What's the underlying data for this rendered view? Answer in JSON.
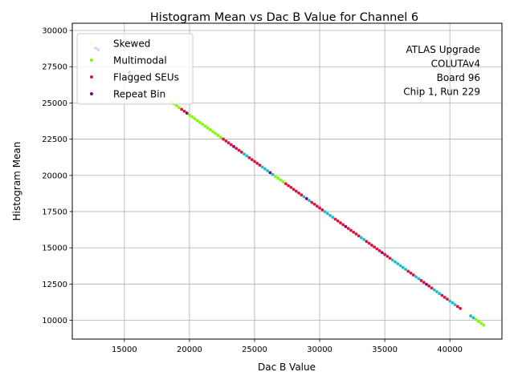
{
  "chart_data": {
    "type": "scatter",
    "title": "Histogram Mean vs Dac B Value for Channel 6",
    "xlabel": "Dac B Value",
    "ylabel": "Histogram Mean",
    "xlim": [
      11000,
      44000
    ],
    "ylim": [
      8700,
      30500
    ],
    "xticks": [
      15000,
      20000,
      25000,
      30000,
      35000,
      40000
    ],
    "xtick_labels": [
      "15000",
      "20000",
      "25000",
      "30000",
      "35000",
      "40000"
    ],
    "yticks": [
      10000,
      12500,
      15000,
      17500,
      20000,
      22500,
      25000,
      27500,
      30000
    ],
    "ytick_labels": [
      "10000",
      "12500",
      "15000",
      "17500",
      "20000",
      "22500",
      "25000",
      "27500",
      "30000"
    ],
    "grid": true,
    "legend_position": "upper-left",
    "annotation": [
      "ATLAS Upgrade",
      "COLUTAv4",
      "Board 96",
      "Chip 1, Run 229"
    ],
    "line": {
      "x_start": 12400,
      "x_end": 42600,
      "y_start": 29050,
      "y_end": 9660,
      "spacing": 200,
      "normal_color": "#17becf"
    },
    "series": [
      {
        "name": "Skewed",
        "color": "#ffffe0",
        "ranges": [
          [
            12400,
            18600
          ],
          [
            41000,
            41400
          ]
        ]
      },
      {
        "name": "Multimodal",
        "color": "#7cfc00",
        "ranges": [
          [
            18600,
            22400
          ],
          [
            26600,
            27200
          ],
          [
            42000,
            42600
          ]
        ]
      },
      {
        "name": "Flagged SEUs",
        "color": "#dc143c",
        "ranges": [
          [
            19400,
            19600
          ],
          [
            22600,
            23200
          ],
          [
            23600,
            24000
          ],
          [
            24600,
            25400
          ],
          [
            27400,
            28600
          ],
          [
            29400,
            30200
          ],
          [
            31200,
            33000
          ],
          [
            33600,
            34600
          ],
          [
            35000,
            35400
          ],
          [
            36800,
            37200
          ],
          [
            37800,
            38600
          ],
          [
            39400,
            39800
          ],
          [
            40600,
            40800
          ]
        ]
      },
      {
        "name": "Repeat Bin",
        "color": "#800080",
        "ranges": [
          [
            12800,
            13000
          ],
          [
            15400,
            15400
          ],
          [
            19800,
            19800
          ],
          [
            23400,
            23400
          ],
          [
            26200,
            26200
          ],
          [
            29000,
            29000
          ],
          [
            32000,
            32000
          ],
          [
            34800,
            34800
          ],
          [
            38200,
            38200
          ]
        ]
      }
    ]
  }
}
